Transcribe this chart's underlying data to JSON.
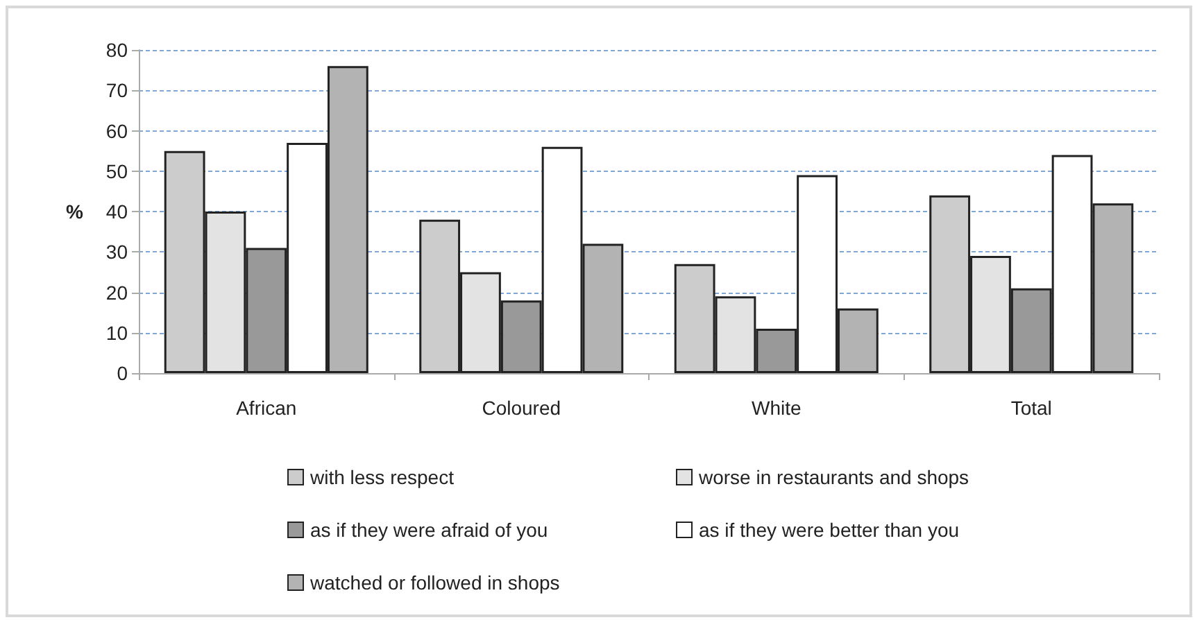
{
  "chart_data": {
    "type": "bar",
    "ylabel": "%",
    "categories": [
      "African",
      "Coloured",
      "White",
      "Total"
    ],
    "series": [
      {
        "name": "with less respect",
        "color": "#cccccc",
        "values": [
          55,
          38,
          27,
          44
        ]
      },
      {
        "name": "worse in restaurants and shops",
        "color": "#e3e3e3",
        "values": [
          40,
          25,
          19,
          29
        ]
      },
      {
        "name": "as if they were afraid of you",
        "color": "#999999",
        "values": [
          31,
          18,
          11,
          21
        ]
      },
      {
        "name": "as if they were better than you",
        "color": "#ffffff",
        "values": [
          57,
          56,
          49,
          54
        ]
      },
      {
        "name": "watched or followed in shops",
        "color": "#b3b3b3",
        "values": [
          76,
          32,
          16,
          42
        ]
      }
    ],
    "ylim": [
      0,
      80
    ],
    "yticks": [
      0,
      10,
      20,
      30,
      40,
      50,
      60,
      70,
      80
    ],
    "grid": "y",
    "legend": "bottom"
  }
}
